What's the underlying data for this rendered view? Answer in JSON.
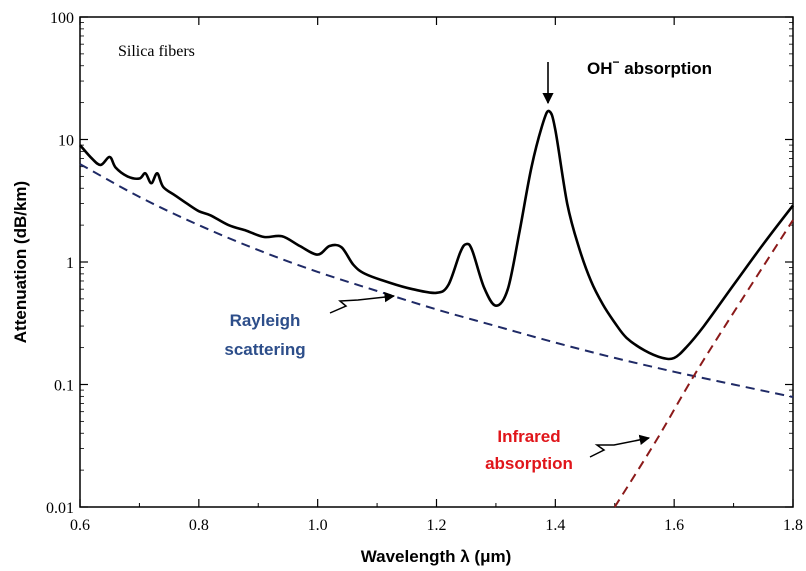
{
  "chart_data": {
    "type": "line",
    "title": "",
    "xlabel": "Wavelength λ (μm)",
    "ylabel": "Attenuation (dB/km)",
    "xlim": [
      0.6,
      1.8
    ],
    "ylim": [
      0.01,
      100
    ],
    "yscale": "log",
    "grid": false,
    "x_ticks": [
      0.6,
      0.8,
      1.0,
      1.2,
      1.4,
      1.6,
      1.8
    ],
    "x_tick_labels": [
      "0.6",
      "0.8",
      "1.0",
      "1.2",
      "1.4",
      "1.6",
      "1.8"
    ],
    "y_ticks": [
      0.01,
      0.1,
      1,
      10,
      100
    ],
    "y_tick_labels": [
      "0.01",
      "0.1",
      "1",
      "10",
      "100"
    ],
    "inset_label": "Silica fibers",
    "series": [
      {
        "style": "solid",
        "color": "#000000",
        "points": [
          [
            0.6,
            9.0
          ],
          [
            0.62,
            7.0
          ],
          [
            0.635,
            6.2
          ],
          [
            0.65,
            7.2
          ],
          [
            0.66,
            5.9
          ],
          [
            0.68,
            5.0
          ],
          [
            0.7,
            4.8
          ],
          [
            0.71,
            5.3
          ],
          [
            0.72,
            4.4
          ],
          [
            0.73,
            5.3
          ],
          [
            0.74,
            4.1
          ],
          [
            0.76,
            3.5
          ],
          [
            0.78,
            3.0
          ],
          [
            0.8,
            2.6
          ],
          [
            0.82,
            2.4
          ],
          [
            0.85,
            2.0
          ],
          [
            0.88,
            1.8
          ],
          [
            0.91,
            1.6
          ],
          [
            0.94,
            1.62
          ],
          [
            0.97,
            1.35
          ],
          [
            1.0,
            1.15
          ],
          [
            1.02,
            1.35
          ],
          [
            1.04,
            1.32
          ],
          [
            1.06,
            0.95
          ],
          [
            1.08,
            0.8
          ],
          [
            1.12,
            0.68
          ],
          [
            1.16,
            0.6
          ],
          [
            1.2,
            0.56
          ],
          [
            1.22,
            0.65
          ],
          [
            1.24,
            1.2
          ],
          [
            1.25,
            1.4
          ],
          [
            1.26,
            1.25
          ],
          [
            1.28,
            0.62
          ],
          [
            1.3,
            0.44
          ],
          [
            1.32,
            0.6
          ],
          [
            1.34,
            1.8
          ],
          [
            1.36,
            6.0
          ],
          [
            1.38,
            14.0
          ],
          [
            1.39,
            17.0
          ],
          [
            1.4,
            12.0
          ],
          [
            1.42,
            3.0
          ],
          [
            1.44,
            1.3
          ],
          [
            1.46,
            0.7
          ],
          [
            1.48,
            0.45
          ],
          [
            1.5,
            0.32
          ],
          [
            1.52,
            0.24
          ],
          [
            1.55,
            0.19
          ],
          [
            1.58,
            0.165
          ],
          [
            1.6,
            0.165
          ],
          [
            1.62,
            0.2
          ],
          [
            1.65,
            0.3
          ],
          [
            1.7,
            0.65
          ],
          [
            1.75,
            1.4
          ],
          [
            1.8,
            2.9
          ]
        ]
      },
      {
        "name": "Rayleigh scattering",
        "style": "dashed",
        "color": "#1f2a66",
        "points": [
          [
            0.6,
            6.3
          ],
          [
            0.7,
            3.4
          ],
          [
            0.8,
            2.0
          ],
          [
            0.9,
            1.25
          ],
          [
            1.0,
            0.83
          ],
          [
            1.1,
            0.58
          ],
          [
            1.2,
            0.41
          ],
          [
            1.3,
            0.3
          ],
          [
            1.4,
            0.22
          ],
          [
            1.5,
            0.165
          ],
          [
            1.6,
            0.127
          ],
          [
            1.7,
            0.1
          ],
          [
            1.8,
            0.079
          ]
        ]
      },
      {
        "name": "Infrared absorption",
        "style": "dashed",
        "color": "#8b1a1a",
        "points": [
          [
            1.5,
            0.01
          ],
          [
            1.57,
            0.035
          ],
          [
            1.65,
            0.16
          ],
          [
            1.8,
            2.2
          ]
        ]
      }
    ],
    "annotations": [
      {
        "text": "OH",
        "superscript": "−",
        "text_after": " absorption",
        "color": "#000000",
        "points_to": [
          1.39,
          17.0
        ]
      },
      {
        "lines": [
          "Rayleigh",
          "scattering"
        ],
        "color": "#2d4e8a",
        "points_to": [
          1.13,
          0.55
        ]
      },
      {
        "lines": [
          "Infrared",
          "absorption"
        ],
        "color": "#e0151a",
        "points_to": [
          1.58,
          0.04
        ]
      }
    ]
  }
}
